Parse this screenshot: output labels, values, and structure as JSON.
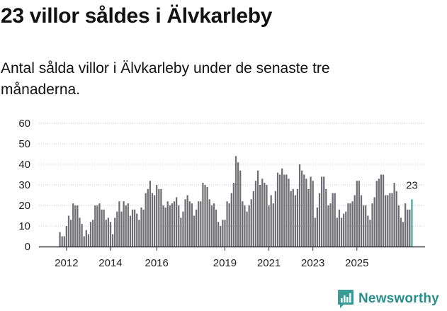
{
  "header": {
    "title": "23 villor såldes i Älvkarleby",
    "subtitle": "Antal sålda villor i Älvkarleby under de senaste tre månaderna."
  },
  "brand": {
    "name": "Newsworthy"
  },
  "colors": {
    "bar": "#6e6d72",
    "highlight": "#2a9d96",
    "brand": "#2a8e8a",
    "grid": "#c8c8c8"
  },
  "chart_data": {
    "type": "bar",
    "title": "23 villor såldes i Älvkarleby",
    "subtitle": "Antal sålda villor i Älvkarleby under de senaste tre månaderna.",
    "xlabel": "",
    "ylabel": "",
    "ylim": [
      0,
      60
    ],
    "yticks": [
      0,
      10,
      20,
      30,
      40,
      50,
      60
    ],
    "xticks": [
      {
        "label": "2012",
        "index": 3
      },
      {
        "label": "2014",
        "index": 23
      },
      {
        "label": "2016",
        "index": 44
      },
      {
        "label": "2019",
        "index": 75
      },
      {
        "label": "2021",
        "index": 95
      },
      {
        "label": "2023",
        "index": 115
      },
      {
        "label": "2025",
        "index": 135
      }
    ],
    "grid": true,
    "highlight_label": "23",
    "values": [
      7,
      5,
      5,
      10,
      15,
      13,
      21,
      20,
      20,
      14,
      11,
      5,
      8,
      6,
      12,
      13,
      20,
      20,
      21,
      18,
      18,
      13,
      14,
      12,
      6,
      14,
      17,
      22,
      17,
      22,
      20,
      21,
      15,
      18,
      18,
      16,
      13,
      19,
      18,
      26,
      28,
      32,
      26,
      25,
      30,
      28,
      28,
      20,
      19,
      22,
      20,
      21,
      22,
      24,
      20,
      14,
      17,
      23,
      25,
      22,
      21,
      15,
      18,
      22,
      22,
      31,
      30,
      29,
      23,
      20,
      21,
      18,
      12,
      10,
      13,
      13,
      22,
      21,
      26,
      31,
      44,
      41,
      37,
      22,
      20,
      17,
      20,
      23,
      27,
      32,
      37,
      30,
      33,
      31,
      30,
      20,
      25,
      21,
      27,
      36,
      35,
      38,
      35,
      35,
      33,
      27,
      28,
      25,
      28,
      40,
      37,
      35,
      33,
      28,
      34,
      32,
      14,
      19,
      26,
      34,
      34,
      28,
      20,
      21,
      26,
      26,
      14,
      18,
      14,
      16,
      17,
      21,
      21,
      22,
      25,
      32,
      32,
      25,
      20,
      20,
      15,
      13,
      21,
      24,
      32,
      33,
      35,
      35,
      25,
      25,
      26,
      26,
      31,
      27,
      20,
      14,
      12,
      21,
      18,
      18,
      23
    ]
  }
}
